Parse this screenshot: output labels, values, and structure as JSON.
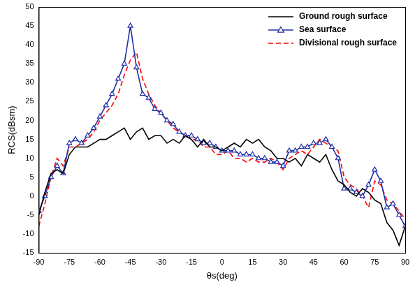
{
  "chart_data": {
    "type": "line",
    "x_label": "θs(deg)",
    "y_label": "RCS(dBsm)",
    "xlim": [
      -90,
      90
    ],
    "xticks": [
      -90,
      -75,
      -60,
      -45,
      -30,
      -15,
      0,
      15,
      30,
      45,
      60,
      75,
      90
    ],
    "ylim": [
      -15,
      50
    ],
    "yticks": [
      -15,
      -10,
      -5,
      0,
      5,
      10,
      15,
      20,
      25,
      30,
      35,
      40,
      45,
      50
    ],
    "grid": false,
    "legend": "upper right",
    "x": [
      -90,
      -87,
      -84,
      -81,
      -78,
      -75,
      -72,
      -69,
      -66,
      -63,
      -60,
      -57,
      -54,
      -51,
      -48,
      -45,
      -42,
      -39,
      -36,
      -33,
      -30,
      -27,
      -24,
      -21,
      -18,
      -15,
      -12,
      -9,
      -6,
      -3,
      0,
      3,
      6,
      9,
      12,
      15,
      18,
      21,
      24,
      27,
      30,
      33,
      36,
      39,
      42,
      45,
      48,
      51,
      54,
      57,
      60,
      63,
      66,
      69,
      72,
      75,
      78,
      81,
      84,
      87,
      90
    ],
    "series": [
      {
        "name": "Ground rough surface",
        "color": "#000000",
        "marker": "none",
        "line_style": "solid",
        "values": [
          -5,
          1,
          6,
          7,
          6,
          11,
          13,
          13,
          13,
          14,
          15,
          15,
          16,
          17,
          18,
          15,
          17,
          18,
          15,
          16,
          16,
          14,
          15,
          14,
          16,
          15,
          13,
          15,
          13,
          13,
          12,
          13,
          14,
          13,
          15,
          14,
          15,
          13,
          12,
          10,
          10,
          9,
          10,
          8,
          11,
          10,
          9,
          11,
          7,
          4,
          3,
          1,
          0,
          2,
          1,
          -1,
          -2,
          -7,
          -9,
          -13,
          -8
        ]
      },
      {
        "name": "Sea surface",
        "color": "#1f2fa8",
        "marker": "triangle",
        "line_style": "solid",
        "values": [
          -4,
          0,
          5,
          8,
          6,
          14,
          15,
          14,
          16,
          18,
          21,
          24,
          27,
          31,
          35,
          45,
          34,
          27,
          26,
          23,
          22,
          20,
          19,
          17,
          16,
          16,
          15,
          14,
          14,
          13,
          12,
          12,
          12,
          11,
          11,
          11,
          10,
          10,
          9,
          9,
          8,
          12,
          12,
          13,
          13,
          14,
          14,
          15,
          13,
          10,
          2,
          2,
          1,
          0,
          3,
          7,
          4,
          -3,
          -2,
          -5,
          -8
        ]
      },
      {
        "name": "Divisional rough surface",
        "color": "#ff0000",
        "marker": "none",
        "line_style": "dashed",
        "values": [
          -8,
          -2,
          5,
          10,
          8,
          13,
          13,
          14,
          15,
          17,
          20,
          22,
          24,
          27,
          32,
          36,
          38,
          31,
          27,
          24,
          22,
          20,
          18,
          17,
          16,
          15,
          15,
          13,
          13,
          11,
          11,
          12,
          10,
          10,
          9,
          10,
          9,
          9,
          10,
          9,
          7,
          10,
          11,
          12,
          11,
          13,
          15,
          14,
          13,
          12,
          5,
          3,
          2,
          0,
          -3,
          4,
          3,
          -1,
          -2,
          -4,
          -6
        ]
      }
    ]
  }
}
